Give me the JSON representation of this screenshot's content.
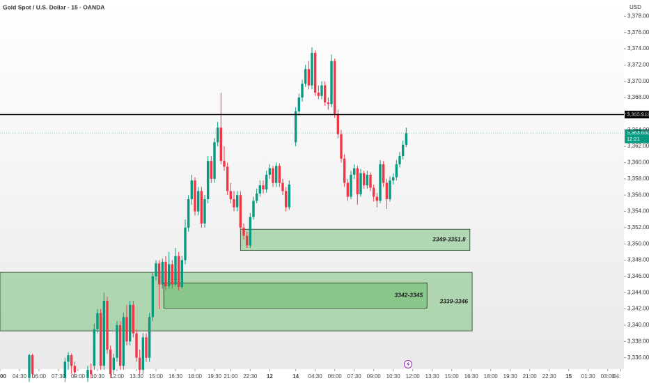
{
  "chart_data": {
    "type": "candlestick",
    "title": "Gold Spot / U.S. Dollar · 15 · OANDA",
    "currency": "USD",
    "up_color": "#089981",
    "down_color": "#f23645",
    "xlim": [
      -6,
      186
    ],
    "ylim": [
      3334.6,
      3380
    ],
    "xticks": [
      {
        "value": -6,
        "label": "00"
      },
      {
        "value": 0,
        "label": "04:30"
      },
      {
        "value": 6,
        "label": "06:00"
      },
      {
        "value": 12,
        "label": "07:30"
      },
      {
        "value": 18,
        "label": "09:00"
      },
      {
        "value": 24,
        "label": "10:30"
      },
      {
        "value": 30,
        "label": "12:00"
      },
      {
        "value": 36,
        "label": "13:30"
      },
      {
        "value": 42,
        "label": "15:00"
      },
      {
        "value": 48,
        "label": "16:30"
      },
      {
        "value": 54,
        "label": "18:00"
      },
      {
        "value": 60,
        "label": "19:30"
      },
      {
        "value": 65,
        "label": "21:00"
      },
      {
        "value": 71,
        "label": "22:30"
      },
      {
        "value": 77,
        "label": "12"
      },
      {
        "value": 85,
        "label": "14"
      },
      {
        "value": 91,
        "label": "04:30"
      },
      {
        "value": 97,
        "label": "06:00"
      },
      {
        "value": 103,
        "label": "07:30"
      },
      {
        "value": 109,
        "label": "09:00"
      },
      {
        "value": 115,
        "label": "10:30"
      },
      {
        "value": 121,
        "label": "12:00"
      },
      {
        "value": 127,
        "label": "13:30"
      },
      {
        "value": 133,
        "label": "15:00"
      },
      {
        "value": 139,
        "label": "16:30"
      },
      {
        "value": 145,
        "label": "18:00"
      },
      {
        "value": 151,
        "label": "19:30"
      },
      {
        "value": 157,
        "label": "21:00"
      },
      {
        "value": 163,
        "label": "22:30"
      },
      {
        "value": 169,
        "label": "15"
      },
      {
        "value": 175,
        "label": "01:30"
      },
      {
        "value": 181,
        "label": "03:00"
      },
      {
        "value": 185,
        "label": "04:"
      }
    ],
    "yticks": [
      {
        "value": 3336,
        "label": "3,336.000"
      },
      {
        "value": 3338,
        "label": "3,338.000"
      },
      {
        "value": 3340,
        "label": "3,340.000"
      },
      {
        "value": 3342,
        "label": "3,342.000"
      },
      {
        "value": 3344,
        "label": "3,344.000"
      },
      {
        "value": 3346,
        "label": "3,346.000"
      },
      {
        "value": 3348,
        "label": "3,348.000"
      },
      {
        "value": 3350,
        "label": "3,350.000"
      },
      {
        "value": 3352,
        "label": "3,352.000"
      },
      {
        "value": 3354,
        "label": "3,354.000"
      },
      {
        "value": 3356,
        "label": "3,356.000"
      },
      {
        "value": 3358,
        "label": "3,358.000"
      },
      {
        "value": 3360,
        "label": "3,360.000"
      },
      {
        "value": 3362,
        "label": "3,362.000"
      },
      {
        "value": 3364,
        "label": "3,364.000"
      },
      {
        "value": 3366,
        "label": "3,366.000"
      },
      {
        "value": 3368,
        "label": "3,368.000"
      },
      {
        "value": 3370,
        "label": "3,370.000"
      },
      {
        "value": 3372,
        "label": "3,372.000"
      },
      {
        "value": 3374,
        "label": "3,374.000"
      },
      {
        "value": 3376,
        "label": "3,376.000"
      },
      {
        "value": 3378,
        "label": "3,378.000"
      }
    ],
    "zones": [
      {
        "label": "3339-3346",
        "x": [
          -6,
          139.3
        ],
        "y": [
          3339.3,
          3346.5
        ]
      },
      {
        "label": "3342-3345",
        "x": [
          44.4,
          125.4
        ],
        "y": [
          3342.1,
          3345.2
        ]
      },
      {
        "label": "3349-3351.8",
        "x": [
          68,
          138.6
        ],
        "y": [
          3349.2,
          3351.8
        ]
      }
    ],
    "price_lines": [
      {
        "value": 3365.912,
        "label": "3,365.912",
        "color": "#000000"
      },
      {
        "value": 3363.63,
        "label": "3,363.630",
        "countdown": "12:21",
        "color": "#089981"
      }
    ],
    "candles": [
      {
        "x": 3,
        "o": 3333.5,
        "h": 3336.5,
        "l": 3333,
        "c": 3336.3
      },
      {
        "x": 4,
        "o": 3336.3,
        "h": 3336.5,
        "l": 3333.5,
        "c": 3334
      },
      {
        "x": 14,
        "o": 3333.5,
        "h": 3336,
        "l": 3333,
        "c": 3335.5
      },
      {
        "x": 15,
        "o": 3335.5,
        "h": 3336.7,
        "l": 3334.5,
        "c": 3336.3
      },
      {
        "x": 16,
        "o": 3336.3,
        "h": 3336.5,
        "l": 3334,
        "c": 3335
      },
      {
        "x": 17,
        "o": 3335,
        "h": 3335.5,
        "l": 3333.5,
        "c": 3334.2
      },
      {
        "x": 21,
        "o": 3333.5,
        "h": 3335,
        "l": 3333,
        "c": 3334.5
      },
      {
        "x": 22,
        "o": 3334.5,
        "h": 3335.3,
        "l": 3333.5,
        "c": 3334
      },
      {
        "x": 23,
        "o": 3335,
        "h": 3340.2,
        "l": 3334.5,
        "c": 3339.5
      },
      {
        "x": 24,
        "o": 3339.5,
        "h": 3342,
        "l": 3339,
        "c": 3341.5
      },
      {
        "x": 25,
        "o": 3341.5,
        "h": 3342,
        "l": 3334.5,
        "c": 3335
      },
      {
        "x": 26,
        "o": 3335,
        "h": 3344,
        "l": 3334.5,
        "c": 3343
      },
      {
        "x": 27,
        "o": 3343,
        "h": 3343.5,
        "l": 3336.5,
        "c": 3337
      },
      {
        "x": 28,
        "o": 3337,
        "h": 3337.5,
        "l": 3333.5,
        "c": 3334
      },
      {
        "x": 29,
        "o": 3334.5,
        "h": 3336.5,
        "l": 3334,
        "c": 3336
      },
      {
        "x": 30,
        "o": 3336,
        "h": 3340.5,
        "l": 3335.5,
        "c": 3340
      },
      {
        "x": 31,
        "o": 3340,
        "h": 3340.5,
        "l": 3334.5,
        "c": 3335
      },
      {
        "x": 32,
        "o": 3335,
        "h": 3341.5,
        "l": 3334.5,
        "c": 3341
      },
      {
        "x": 33,
        "o": 3341,
        "h": 3342.5,
        "l": 3337.5,
        "c": 3338
      },
      {
        "x": 34,
        "o": 3338,
        "h": 3343,
        "l": 3337.5,
        "c": 3342.5
      },
      {
        "x": 35,
        "o": 3342.5,
        "h": 3343,
        "l": 3338.5,
        "c": 3339
      },
      {
        "x": 36,
        "o": 3339,
        "h": 3339.5,
        "l": 3335.5,
        "c": 3336
      },
      {
        "x": 37,
        "o": 3336,
        "h": 3337,
        "l": 3334,
        "c": 3334.5
      },
      {
        "x": 38,
        "o": 3334.5,
        "h": 3339,
        "l": 3334,
        "c": 3338.5
      },
      {
        "x": 39,
        "o": 3338.5,
        "h": 3339,
        "l": 3335.5,
        "c": 3336
      },
      {
        "x": 40,
        "o": 3336,
        "h": 3341.5,
        "l": 3335.5,
        "c": 3341
      },
      {
        "x": 41,
        "o": 3341,
        "h": 3346.5,
        "l": 3340.5,
        "c": 3346
      },
      {
        "x": 42,
        "o": 3346,
        "h": 3348,
        "l": 3345.5,
        "c": 3347.6
      },
      {
        "x": 43,
        "o": 3347.6,
        "h": 3348,
        "l": 3342,
        "c": 3345
      },
      {
        "x": 44,
        "o": 3345,
        "h": 3348.2,
        "l": 3344.5,
        "c": 3347.8
      },
      {
        "x": 45,
        "o": 3347.8,
        "h": 3348.5,
        "l": 3344.3,
        "c": 3344.8
      },
      {
        "x": 46,
        "o": 3344.8,
        "h": 3349,
        "l": 3344.5,
        "c": 3347.5
      },
      {
        "x": 47,
        "o": 3347.5,
        "h": 3348,
        "l": 3344.5,
        "c": 3345
      },
      {
        "x": 48,
        "o": 3345,
        "h": 3349.5,
        "l": 3344.8,
        "c": 3348.5
      },
      {
        "x": 49,
        "o": 3348.5,
        "h": 3349,
        "l": 3344.3,
        "c": 3344.7
      },
      {
        "x": 50,
        "o": 3344.7,
        "h": 3348.5,
        "l": 3344.5,
        "c": 3348
      },
      {
        "x": 51,
        "o": 3348,
        "h": 3353,
        "l": 3347.5,
        "c": 3352
      },
      {
        "x": 52,
        "o": 3352,
        "h": 3356,
        "l": 3351.5,
        "c": 3355.5
      },
      {
        "x": 53,
        "o": 3355.5,
        "h": 3358.5,
        "l": 3354.8,
        "c": 3357.8
      },
      {
        "x": 54,
        "o": 3357.8,
        "h": 3358.2,
        "l": 3353.5,
        "c": 3354
      },
      {
        "x": 55,
        "o": 3354,
        "h": 3357,
        "l": 3353.5,
        "c": 3356.5
      },
      {
        "x": 56,
        "o": 3356.5,
        "h": 3357,
        "l": 3352,
        "c": 3352.5
      },
      {
        "x": 57,
        "o": 3352.5,
        "h": 3356,
        "l": 3352,
        "c": 3355.5
      },
      {
        "x": 58,
        "o": 3355.5,
        "h": 3360.8,
        "l": 3355,
        "c": 3360.2
      },
      {
        "x": 59,
        "o": 3360.2,
        "h": 3360.8,
        "l": 3357.5,
        "c": 3358
      },
      {
        "x": 60,
        "o": 3358,
        "h": 3363,
        "l": 3357.5,
        "c": 3362.5
      },
      {
        "x": 61,
        "o": 3362.5,
        "h": 3365,
        "l": 3362,
        "c": 3364.3
      },
      {
        "x": 62,
        "o": 3364.3,
        "h": 3368.6,
        "l": 3359.8,
        "c": 3360.2
      },
      {
        "x": 63,
        "o": 3360.2,
        "h": 3362,
        "l": 3359,
        "c": 3359.5
      },
      {
        "x": 64,
        "o": 3359.5,
        "h": 3360,
        "l": 3356,
        "c": 3356.5
      },
      {
        "x": 65,
        "o": 3356.5,
        "h": 3357.5,
        "l": 3355,
        "c": 3355.5
      },
      {
        "x": 66,
        "o": 3355.5,
        "h": 3356.5,
        "l": 3354,
        "c": 3354.5
      },
      {
        "x": 67,
        "o": 3354.5,
        "h": 3356.5,
        "l": 3354,
        "c": 3356
      },
      {
        "x": 68,
        "o": 3356,
        "h": 3356.5,
        "l": 3351.5,
        "c": 3352
      },
      {
        "x": 69,
        "o": 3352,
        "h": 3352.5,
        "l": 3350.5,
        "c": 3351
      },
      {
        "x": 70,
        "o": 3351,
        "h": 3351.5,
        "l": 3349.5,
        "c": 3349.8
      },
      {
        "x": 71,
        "o": 3349.8,
        "h": 3353.8,
        "l": 3349.5,
        "c": 3353.3
      },
      {
        "x": 72,
        "o": 3353.3,
        "h": 3355.8,
        "l": 3353,
        "c": 3355.3
      },
      {
        "x": 73,
        "o": 3355.3,
        "h": 3356.8,
        "l": 3355,
        "c": 3356.2
      },
      {
        "x": 74,
        "o": 3356.2,
        "h": 3357.8,
        "l": 3355.8,
        "c": 3357.2
      },
      {
        "x": 75,
        "o": 3357.2,
        "h": 3357.8,
        "l": 3356.2,
        "c": 3356.7
      },
      {
        "x": 76,
        "o": 3356.7,
        "h": 3359,
        "l": 3356.3,
        "c": 3358.5
      },
      {
        "x": 77,
        "o": 3358.5,
        "h": 3359.8,
        "l": 3358,
        "c": 3359.3
      },
      {
        "x": 78,
        "o": 3359.3,
        "h": 3359.6,
        "l": 3357,
        "c": 3357.5
      },
      {
        "x": 79,
        "o": 3357.5,
        "h": 3360,
        "l": 3357,
        "c": 3359.6
      },
      {
        "x": 80,
        "o": 3359.6,
        "h": 3359.9,
        "l": 3357,
        "c": 3357.5
      },
      {
        "x": 81,
        "o": 3357.5,
        "h": 3358,
        "l": 3356,
        "c": 3356.5
      },
      {
        "x": 82,
        "o": 3356.5,
        "h": 3357,
        "l": 3354,
        "c": 3354.5
      },
      {
        "x": 83,
        "o": 3354.5,
        "h": 3357.8,
        "l": 3354.2,
        "c": 3357.3
      },
      {
        "x": 85,
        "o": 3362.5,
        "h": 3366.8,
        "l": 3362,
        "c": 3366.3
      },
      {
        "x": 86,
        "o": 3366.3,
        "h": 3368.5,
        "l": 3365.8,
        "c": 3368
      },
      {
        "x": 87,
        "o": 3368,
        "h": 3370.2,
        "l": 3367.5,
        "c": 3369.7
      },
      {
        "x": 88,
        "o": 3369.7,
        "h": 3372,
        "l": 3369.3,
        "c": 3371.5
      },
      {
        "x": 89,
        "o": 3371.5,
        "h": 3372.5,
        "l": 3369,
        "c": 3369.5
      },
      {
        "x": 90,
        "o": 3369.5,
        "h": 3374.2,
        "l": 3369,
        "c": 3373.5
      },
      {
        "x": 91,
        "o": 3373.5,
        "h": 3373.8,
        "l": 3368.2,
        "c": 3368.6
      },
      {
        "x": 92,
        "o": 3368.6,
        "h": 3369.5,
        "l": 3367.8,
        "c": 3368.2
      },
      {
        "x": 93,
        "o": 3368.2,
        "h": 3370,
        "l": 3367.8,
        "c": 3369.5
      },
      {
        "x": 94,
        "o": 3369.5,
        "h": 3370,
        "l": 3367,
        "c": 3367.4
      },
      {
        "x": 95,
        "o": 3367.4,
        "h": 3368,
        "l": 3366.5,
        "c": 3367.2
      },
      {
        "x": 96,
        "o": 3367.2,
        "h": 3373.3,
        "l": 3366.8,
        "c": 3372.5
      },
      {
        "x": 97,
        "o": 3372.5,
        "h": 3372.8,
        "l": 3365.5,
        "c": 3366
      },
      {
        "x": 98,
        "o": 3366,
        "h": 3366.5,
        "l": 3363,
        "c": 3363.5
      },
      {
        "x": 99,
        "o": 3363.5,
        "h": 3364,
        "l": 3360,
        "c": 3360.5
      },
      {
        "x": 100,
        "o": 3360.5,
        "h": 3361,
        "l": 3357,
        "c": 3357.5
      },
      {
        "x": 101,
        "o": 3357.5,
        "h": 3358,
        "l": 3355.3,
        "c": 3355.8
      },
      {
        "x": 102,
        "o": 3355.8,
        "h": 3359,
        "l": 3355.5,
        "c": 3358.5
      },
      {
        "x": 103,
        "o": 3358.5,
        "h": 3359.8,
        "l": 3358,
        "c": 3359.3
      },
      {
        "x": 104,
        "o": 3359.3,
        "h": 3359.6,
        "l": 3354.8,
        "c": 3356.1
      },
      {
        "x": 105,
        "o": 3356.1,
        "h": 3359.2,
        "l": 3355.8,
        "c": 3358.7
      },
      {
        "x": 106,
        "o": 3358.7,
        "h": 3359,
        "l": 3356.8,
        "c": 3357.2
      },
      {
        "x": 107,
        "o": 3357.2,
        "h": 3359,
        "l": 3356.8,
        "c": 3358.5
      },
      {
        "x": 108,
        "o": 3358.5,
        "h": 3358.8,
        "l": 3356.5,
        "c": 3356.9
      },
      {
        "x": 109,
        "o": 3356.9,
        "h": 3357.3,
        "l": 3355.2,
        "c": 3355.8
      },
      {
        "x": 110,
        "o": 3355.8,
        "h": 3356.3,
        "l": 3354.5,
        "c": 3355.3
      },
      {
        "x": 111,
        "o": 3355.3,
        "h": 3360.3,
        "l": 3355,
        "c": 3359.8
      },
      {
        "x": 112,
        "o": 3359.8,
        "h": 3360.2,
        "l": 3357,
        "c": 3357.5
      },
      {
        "x": 113,
        "o": 3357.5,
        "h": 3358,
        "l": 3354.3,
        "c": 3355.5
      },
      {
        "x": 114,
        "o": 3355.5,
        "h": 3358.3,
        "l": 3355.2,
        "c": 3357.8
      },
      {
        "x": 115,
        "o": 3357.8,
        "h": 3358.7,
        "l": 3357.3,
        "c": 3358.2
      },
      {
        "x": 116,
        "o": 3358.2,
        "h": 3360.3,
        "l": 3357.8,
        "c": 3359.8
      },
      {
        "x": 117,
        "o": 3359.8,
        "h": 3361.3,
        "l": 3359.4,
        "c": 3360.8
      },
      {
        "x": 118,
        "o": 3360.8,
        "h": 3362.7,
        "l": 3360.4,
        "c": 3362.2
      },
      {
        "x": 119,
        "o": 3362.2,
        "h": 3364.3,
        "l": 3361.9,
        "c": 3363.6
      }
    ]
  }
}
